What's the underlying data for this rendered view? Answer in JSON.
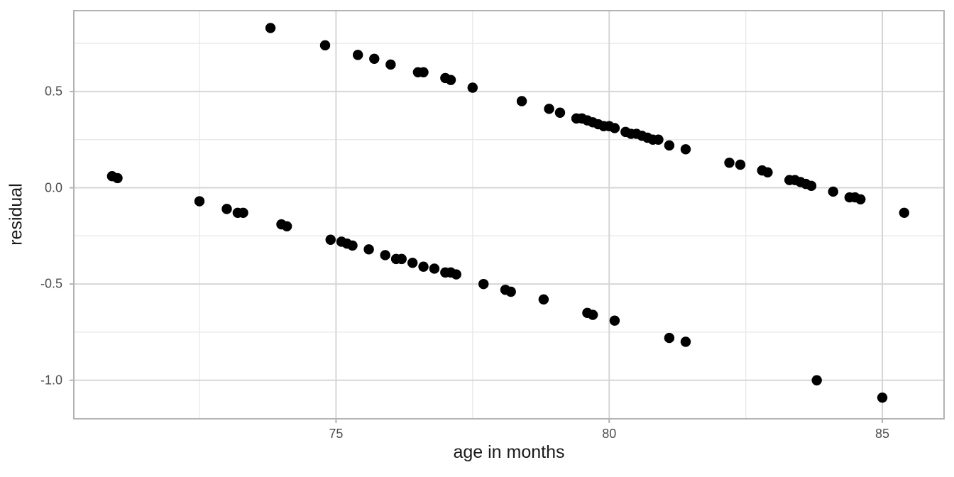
{
  "chart_data": {
    "type": "scatter",
    "title": "",
    "xlabel": "age in months",
    "ylabel": "residual",
    "xlim": [
      70.2,
      86.13
    ],
    "ylim": [
      -1.2,
      0.92
    ],
    "grid": "on",
    "legend": "none",
    "x_ticks": {
      "values": [
        75,
        80,
        85
      ],
      "labels": [
        "75",
        "80",
        "85"
      ]
    },
    "y_ticks": {
      "values": [
        0.5,
        0.0,
        -0.5,
        -1.0
      ],
      "labels": [
        "0.5",
        "0.0",
        "-0.5",
        "-1.0"
      ]
    },
    "x_minor_gridlines": [
      72.5,
      77.5,
      82.5
    ],
    "y_minor_gridlines": [
      0.75,
      0.25,
      -0.25,
      -0.75
    ],
    "point_color": "#000000",
    "point_radius_px": 7.2,
    "points": [
      [
        70.9,
        0.06
      ],
      [
        71.0,
        0.05
      ],
      [
        72.5,
        -0.07
      ],
      [
        73.0,
        -0.11
      ],
      [
        73.2,
        -0.13
      ],
      [
        73.3,
        -0.13
      ],
      [
        74.0,
        -0.19
      ],
      [
        74.1,
        -0.2
      ],
      [
        74.9,
        -0.27
      ],
      [
        75.1,
        -0.28
      ],
      [
        75.2,
        -0.29
      ],
      [
        75.3,
        -0.3
      ],
      [
        75.6,
        -0.32
      ],
      [
        75.9,
        -0.35
      ],
      [
        76.1,
        -0.37
      ],
      [
        76.2,
        -0.37
      ],
      [
        76.4,
        -0.39
      ],
      [
        76.6,
        -0.41
      ],
      [
        76.8,
        -0.42
      ],
      [
        77.0,
        -0.44
      ],
      [
        77.1,
        -0.44
      ],
      [
        77.2,
        -0.45
      ],
      [
        77.7,
        -0.5
      ],
      [
        78.1,
        -0.53
      ],
      [
        78.2,
        -0.54
      ],
      [
        78.8,
        -0.58
      ],
      [
        79.6,
        -0.65
      ],
      [
        79.7,
        -0.66
      ],
      [
        80.1,
        -0.69
      ],
      [
        81.1,
        -0.78
      ],
      [
        81.4,
        -0.8
      ],
      [
        83.8,
        -1.0
      ],
      [
        85.0,
        -1.09
      ],
      [
        73.8,
        0.83
      ],
      [
        74.8,
        0.74
      ],
      [
        75.4,
        0.69
      ],
      [
        75.7,
        0.67
      ],
      [
        76.0,
        0.64
      ],
      [
        76.5,
        0.6
      ],
      [
        76.6,
        0.6
      ],
      [
        77.0,
        0.57
      ],
      [
        77.1,
        0.56
      ],
      [
        77.5,
        0.52
      ],
      [
        78.4,
        0.45
      ],
      [
        78.9,
        0.41
      ],
      [
        79.1,
        0.39
      ],
      [
        79.4,
        0.36
      ],
      [
        79.5,
        0.36
      ],
      [
        79.6,
        0.35
      ],
      [
        79.7,
        0.34
      ],
      [
        79.8,
        0.33
      ],
      [
        79.9,
        0.32
      ],
      [
        80.0,
        0.32
      ],
      [
        80.1,
        0.31
      ],
      [
        80.3,
        0.29
      ],
      [
        80.4,
        0.28
      ],
      [
        80.5,
        0.28
      ],
      [
        80.6,
        0.27
      ],
      [
        80.7,
        0.26
      ],
      [
        80.8,
        0.25
      ],
      [
        80.9,
        0.25
      ],
      [
        81.1,
        0.22
      ],
      [
        81.4,
        0.2
      ],
      [
        82.2,
        0.13
      ],
      [
        82.4,
        0.12
      ],
      [
        82.8,
        0.09
      ],
      [
        82.9,
        0.08
      ],
      [
        83.3,
        0.04
      ],
      [
        83.4,
        0.04
      ],
      [
        83.5,
        0.03
      ],
      [
        83.6,
        0.02
      ],
      [
        83.7,
        0.01
      ],
      [
        84.1,
        -0.02
      ],
      [
        84.4,
        -0.05
      ],
      [
        84.5,
        -0.05
      ],
      [
        84.6,
        -0.06
      ],
      [
        85.4,
        -0.13
      ]
    ]
  },
  "colors": {
    "background": "#ffffff",
    "panel_background": "#ffffff",
    "panel_border": "#b3b3b3",
    "grid_major": "#d6d6d6",
    "grid_minor": "#e9e9e9",
    "tick_mark": "#b3b3b3",
    "tick_label": "#4d4d4d",
    "axis_title": "#1a1a1a",
    "point": "#000000"
  }
}
